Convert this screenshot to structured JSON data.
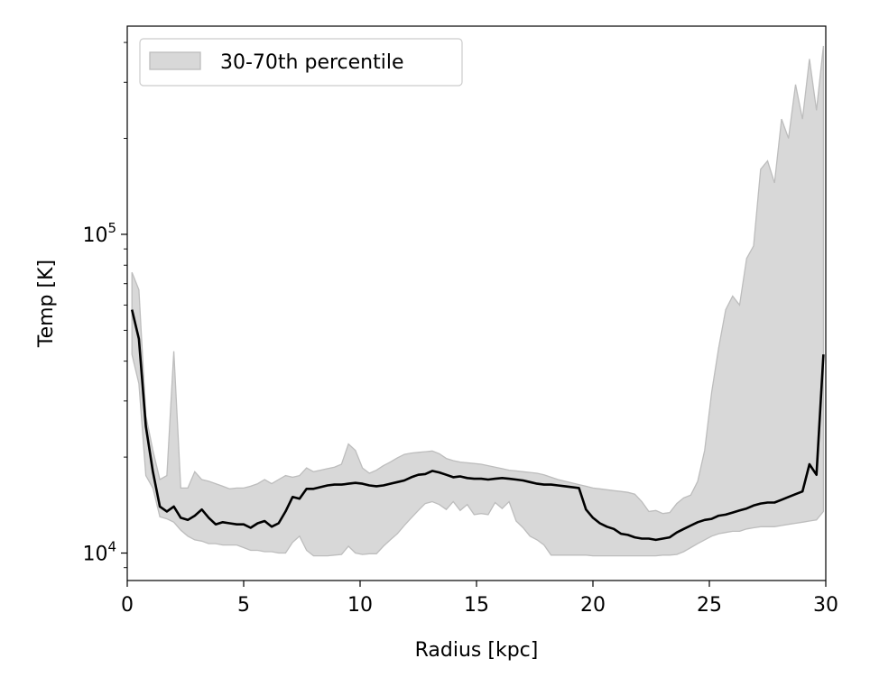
{
  "chart_data": {
    "type": "line",
    "title": "",
    "xlabel": "Radius [kpc]",
    "ylabel": "Temp [K]",
    "xscale": "linear",
    "yscale": "log",
    "xlim": [
      0,
      30
    ],
    "ylim": [
      8200,
      450000
    ],
    "grid": false,
    "legend": {
      "placement": "upper-left"
    },
    "x_ticks": [
      {
        "value": 0,
        "label": "0"
      },
      {
        "value": 5,
        "label": "5"
      },
      {
        "value": 10,
        "label": "10"
      },
      {
        "value": 15,
        "label": "15"
      },
      {
        "value": 20,
        "label": "20"
      },
      {
        "value": 25,
        "label": "25"
      },
      {
        "value": 30,
        "label": "30"
      }
    ],
    "y_ticks": [
      {
        "value": 10000,
        "base": "10",
        "exp": "4"
      },
      {
        "value": 100000,
        "base": "10",
        "exp": "5"
      }
    ],
    "y_minor_ticks": [
      9000,
      20000,
      30000,
      40000,
      50000,
      60000,
      70000,
      80000,
      90000,
      200000,
      300000,
      400000
    ],
    "colors": {
      "line": "#000000",
      "band_fill": "#d8d8d8",
      "band_edge": "#bdbdbd"
    },
    "band": {
      "name": "30-70th percentile",
      "x": [
        0.2,
        0.5,
        0.8,
        1.1,
        1.4,
        1.7,
        2.0,
        2.3,
        2.6,
        2.9,
        3.2,
        3.5,
        3.8,
        4.1,
        4.4,
        4.7,
        5.0,
        5.3,
        5.6,
        5.9,
        6.2,
        6.5,
        6.8,
        7.1,
        7.4,
        7.7,
        8.0,
        8.3,
        8.6,
        8.9,
        9.2,
        9.5,
        9.8,
        10.1,
        10.4,
        10.7,
        11.0,
        11.3,
        11.6,
        11.9,
        12.2,
        12.5,
        12.8,
        13.1,
        13.4,
        13.7,
        14.0,
        14.3,
        14.6,
        14.9,
        15.2,
        15.5,
        15.8,
        16.1,
        16.4,
        16.7,
        17.0,
        17.3,
        17.6,
        17.9,
        18.2,
        18.5,
        18.8,
        19.1,
        19.4,
        19.7,
        20.0,
        20.3,
        20.6,
        20.9,
        21.2,
        21.5,
        21.8,
        22.1,
        22.4,
        22.7,
        23.0,
        23.3,
        23.6,
        23.9,
        24.2,
        24.5,
        24.8,
        25.1,
        25.4,
        25.7,
        26.0,
        26.3,
        26.6,
        26.9,
        27.2,
        27.5,
        27.8,
        28.1,
        28.4,
        28.7,
        29.0,
        29.3,
        29.6,
        29.9
      ],
      "upper": [
        76000,
        67000,
        27000,
        21000,
        17000,
        17500,
        43000,
        16000,
        16000,
        18000,
        17000,
        16800,
        16500,
        16200,
        15900,
        16000,
        16000,
        16200,
        16500,
        17000,
        16500,
        17000,
        17500,
        17300,
        17500,
        18500,
        18000,
        18200,
        18400,
        18600,
        19000,
        22000,
        21000,
        18500,
        17800,
        18200,
        18800,
        19300,
        19900,
        20400,
        20600,
        20700,
        20800,
        20900,
        20500,
        19800,
        19500,
        19300,
        19200,
        19100,
        19000,
        18800,
        18600,
        18400,
        18200,
        18100,
        18000,
        17900,
        17800,
        17600,
        17300,
        17000,
        16800,
        16600,
        16400,
        16200,
        16000,
        15900,
        15800,
        15700,
        15600,
        15500,
        15300,
        14500,
        13500,
        13600,
        13300,
        13400,
        14300,
        14900,
        15200,
        16800,
        21000,
        32000,
        44000,
        58000,
        64000,
        60000,
        84000,
        92000,
        160000,
        170000,
        145000,
        230000,
        200000,
        295000,
        230000,
        355000,
        245000,
        390000
      ],
      "lower": [
        42000,
        34000,
        17500,
        16000,
        13000,
        12800,
        12500,
        11800,
        11300,
        11000,
        10900,
        10700,
        10700,
        10600,
        10600,
        10600,
        10400,
        10200,
        10200,
        10100,
        10100,
        10000,
        10000,
        10800,
        11300,
        10200,
        9800,
        9800,
        9800,
        9850,
        9900,
        10500,
        10000,
        9900,
        9950,
        9950,
        10500,
        11000,
        11500,
        12200,
        12900,
        13600,
        14300,
        14500,
        14200,
        13700,
        14500,
        13600,
        14200,
        13200,
        13300,
        13200,
        14400,
        13800,
        14500,
        12600,
        12000,
        11300,
        11000,
        10600,
        9850,
        9850,
        9850,
        9850,
        9850,
        9850,
        9800,
        9800,
        9800,
        9800,
        9800,
        9800,
        9800,
        9800,
        9800,
        9800,
        9850,
        9850,
        9900,
        10100,
        10400,
        10700,
        11000,
        11300,
        11500,
        11600,
        11700,
        11700,
        11900,
        12000,
        12100,
        12100,
        12100,
        12200,
        12300,
        12400,
        12500,
        12600,
        12700,
        13500
      ]
    },
    "series": [
      {
        "name": "",
        "x": [
          0.2,
          0.5,
          0.8,
          1.1,
          1.4,
          1.7,
          2.0,
          2.3,
          2.6,
          2.9,
          3.2,
          3.5,
          3.8,
          4.1,
          4.4,
          4.7,
          5.0,
          5.3,
          5.6,
          5.9,
          6.2,
          6.5,
          6.8,
          7.1,
          7.4,
          7.7,
          8.0,
          8.3,
          8.6,
          8.9,
          9.2,
          9.5,
          9.8,
          10.1,
          10.4,
          10.7,
          11.0,
          11.3,
          11.6,
          11.9,
          12.2,
          12.5,
          12.8,
          13.1,
          13.4,
          13.7,
          14.0,
          14.3,
          14.6,
          14.9,
          15.2,
          15.5,
          15.8,
          16.1,
          16.4,
          16.7,
          17.0,
          17.3,
          17.6,
          17.9,
          18.2,
          18.5,
          18.8,
          19.1,
          19.4,
          19.7,
          20.0,
          20.3,
          20.6,
          20.9,
          21.2,
          21.5,
          21.8,
          22.1,
          22.4,
          22.7,
          23.0,
          23.3,
          23.6,
          23.9,
          24.2,
          24.5,
          24.8,
          25.1,
          25.4,
          25.7,
          26.0,
          26.3,
          26.6,
          26.9,
          27.2,
          27.5,
          27.8,
          28.1,
          28.4,
          28.7,
          29.0,
          29.3,
          29.6,
          29.9
        ],
        "values": [
          58000,
          47000,
          25000,
          18000,
          14000,
          13500,
          14000,
          12900,
          12700,
          13100,
          13700,
          12900,
          12300,
          12500,
          12400,
          12300,
          12300,
          12000,
          12400,
          12600,
          12100,
          12400,
          13500,
          15000,
          14800,
          15900,
          15900,
          16100,
          16300,
          16400,
          16400,
          16500,
          16600,
          16500,
          16300,
          16200,
          16300,
          16500,
          16700,
          16900,
          17300,
          17600,
          17700,
          18100,
          17900,
          17600,
          17300,
          17400,
          17200,
          17100,
          17100,
          17000,
          17100,
          17200,
          17100,
          17000,
          16900,
          16700,
          16500,
          16400,
          16400,
          16300,
          16200,
          16100,
          16000,
          13700,
          12900,
          12400,
          12100,
          11900,
          11500,
          11400,
          11200,
          11100,
          11100,
          11000,
          11100,
          11200,
          11600,
          11900,
          12200,
          12500,
          12700,
          12800,
          13100,
          13200,
          13400,
          13600,
          13800,
          14100,
          14300,
          14400,
          14400,
          14700,
          15000,
          15300,
          15600,
          19000,
          17600,
          42000
        ]
      }
    ]
  }
}
